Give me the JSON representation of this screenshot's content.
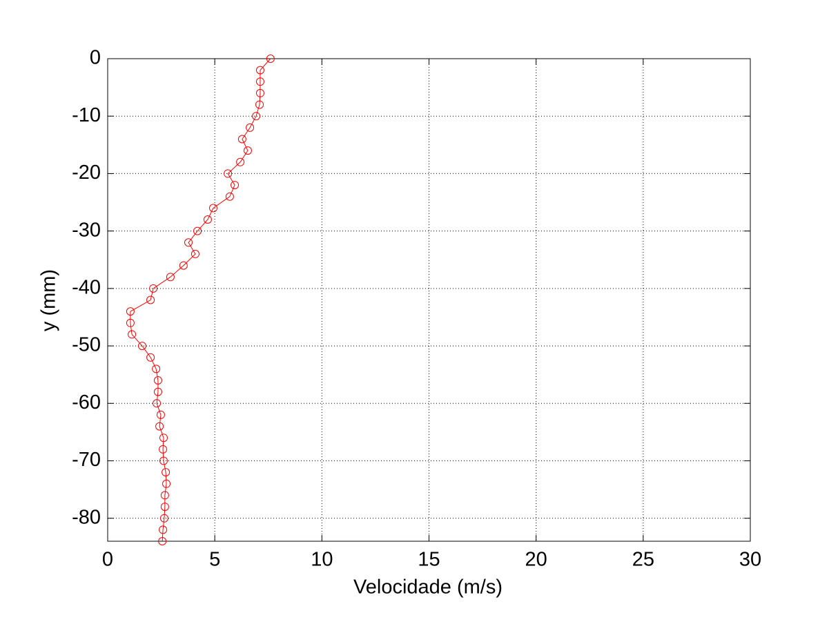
{
  "chart_data": {
    "type": "line",
    "x_label": "Velocidade (m/s)",
    "y_label": "y (mm)",
    "color": "#ff0000",
    "grid": true,
    "x": [
      7.6,
      7.12,
      7.12,
      7.12,
      7.09,
      6.93,
      6.64,
      6.28,
      6.54,
      6.19,
      5.61,
      5.93,
      5.7,
      4.93,
      4.67,
      4.19,
      3.77,
      4.09,
      3.54,
      2.93,
      2.13,
      2.0,
      1.06,
      1.06,
      1.13,
      1.61,
      2.0,
      2.26,
      2.35,
      2.35,
      2.29,
      2.48,
      2.42,
      2.61,
      2.58,
      2.61,
      2.71,
      2.74,
      2.67,
      2.67,
      2.64,
      2.58,
      2.55
    ],
    "values": [
      0,
      -2,
      -4,
      -6,
      -8,
      -10,
      -12,
      -14,
      -16,
      -18,
      -20,
      -22,
      -24,
      -26,
      -28,
      -30,
      -32,
      -34,
      -36,
      -38,
      -40,
      -42,
      -44,
      -46,
      -48,
      -50,
      -52,
      -54,
      -56,
      -58,
      -60,
      -62,
      -64,
      -66,
      -68,
      -70,
      -72,
      -74,
      -76,
      -78,
      -80,
      -82,
      -84
    ],
    "xlim": [
      0,
      30
    ],
    "xticks": [
      0,
      5,
      10,
      15,
      20,
      25,
      30
    ],
    "ylim": [
      -84,
      0
    ],
    "yticks": [
      0,
      -10,
      -20,
      -30,
      -40,
      -50,
      -60,
      -70,
      -80
    ]
  }
}
